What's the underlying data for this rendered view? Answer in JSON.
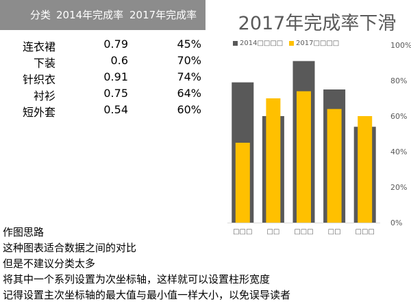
{
  "table": {
    "headers": [
      "分类",
      "2014年完成率",
      "2017年完成率"
    ],
    "rows": [
      {
        "category": "连衣裙",
        "y2014": "0.79",
        "y2017": "45%"
      },
      {
        "category": "下装",
        "y2014": "0.6",
        "y2017": "70%"
      },
      {
        "category": "针织衣",
        "y2014": "0.91",
        "y2017": "74%"
      },
      {
        "category": "衬衫",
        "y2014": "0.75",
        "y2017": "64%"
      },
      {
        "category": "短外套",
        "y2014": "0.54",
        "y2017": "60%"
      }
    ]
  },
  "chart_data": {
    "type": "bar",
    "title": "2017年完成率下滑",
    "categories": [
      "□□□",
      "□□",
      "□□□",
      "□□",
      "□□□"
    ],
    "series": [
      {
        "name": "2014□□□□",
        "values": [
          0.79,
          0.6,
          0.91,
          0.75,
          0.54
        ],
        "color": "#595959"
      },
      {
        "name": "2017□□□□",
        "values": [
          0.45,
          0.7,
          0.74,
          0.64,
          0.6
        ],
        "color": "#ffc000"
      }
    ],
    "ylim": [
      0,
      1
    ],
    "yticks": [
      0,
      0.2,
      0.4,
      0.6,
      0.8,
      1.0
    ],
    "ytick_labels": [
      "0%",
      "20%",
      "40%",
      "60%",
      "80%",
      "100%"
    ],
    "grid": false,
    "legend": "top-left",
    "axis_color": "#d9d9d9",
    "tick_label_color": "#595959"
  },
  "notes": [
    "作图思路",
    "这种图表适合数据之间的对比",
    "但是不建议分类太多",
    "将其中一个系列设置为次坐标轴，这样就可以设置柱形宽度",
    "记得设置主次坐标轴的最大值与最小值一样大小，以免误导读者"
  ]
}
